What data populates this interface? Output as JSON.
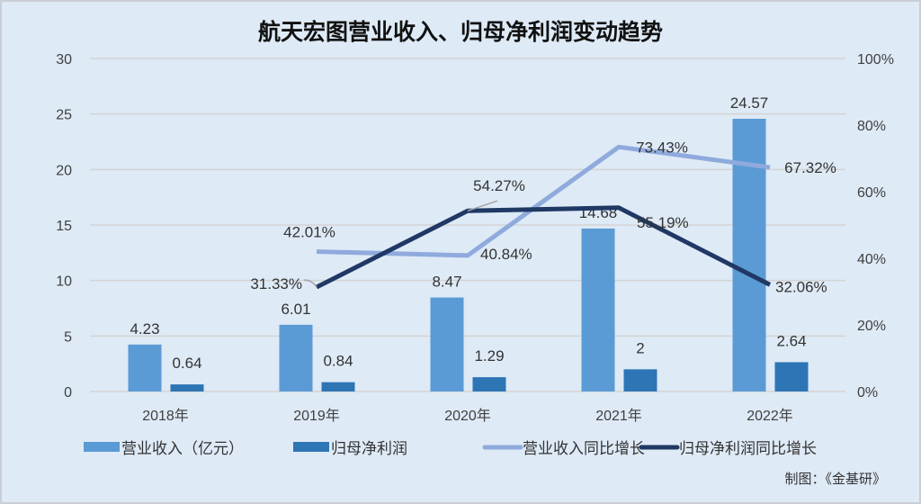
{
  "chart_data": {
    "type": "bar",
    "title": "航天宏图营业收入、归母净利润变动趋势",
    "categories": [
      "2018年",
      "2019年",
      "2020年",
      "2021年",
      "2022年"
    ],
    "y_left": {
      "ylim": [
        0,
        30
      ],
      "ticks": [
        "0",
        "5",
        "10",
        "15",
        "20",
        "25",
        "30"
      ],
      "tick_values": [
        0,
        5,
        10,
        15,
        20,
        25,
        30
      ]
    },
    "y_right": {
      "ylim": [
        0,
        100
      ],
      "ticks": [
        "0%",
        "20%",
        "40%",
        "60%",
        "80%",
        "100%"
      ],
      "tick_values": [
        0,
        20,
        40,
        60,
        80,
        100
      ]
    },
    "grid": true,
    "legend_placement": "bottom",
    "series": [
      {
        "name": "营业收入（亿元）",
        "kind": "bar",
        "axis": "left",
        "color": "#5b9bd5",
        "values": [
          4.23,
          6.01,
          8.47,
          14.68,
          24.57
        ],
        "labels": [
          "4.23",
          "6.01",
          "8.47",
          "14.68",
          "24.57"
        ]
      },
      {
        "name": "归母净利润",
        "kind": "bar",
        "axis": "left",
        "color": "#2e75b6",
        "values": [
          0.64,
          0.84,
          1.29,
          2,
          2.64
        ],
        "labels": [
          "0.64",
          "0.84",
          "1.29",
          "2",
          "2.64"
        ]
      },
      {
        "name": "营业收入同比增长",
        "kind": "line",
        "axis": "right",
        "color": "#8faadc",
        "values": [
          null,
          42.01,
          40.84,
          73.43,
          67.32
        ],
        "labels": [
          "",
          "42.01%",
          "40.84%",
          "73.43%",
          "67.32%"
        ]
      },
      {
        "name": "归母净利润同比增长",
        "kind": "line",
        "axis": "right",
        "color": "#203864",
        "values": [
          null,
          31.33,
          54.27,
          55.19,
          32.06
        ],
        "labels": [
          "",
          "31.33%",
          "54.27%",
          "55.19%",
          "32.06%"
        ]
      }
    ],
    "credit": "制图：《金基研》"
  }
}
